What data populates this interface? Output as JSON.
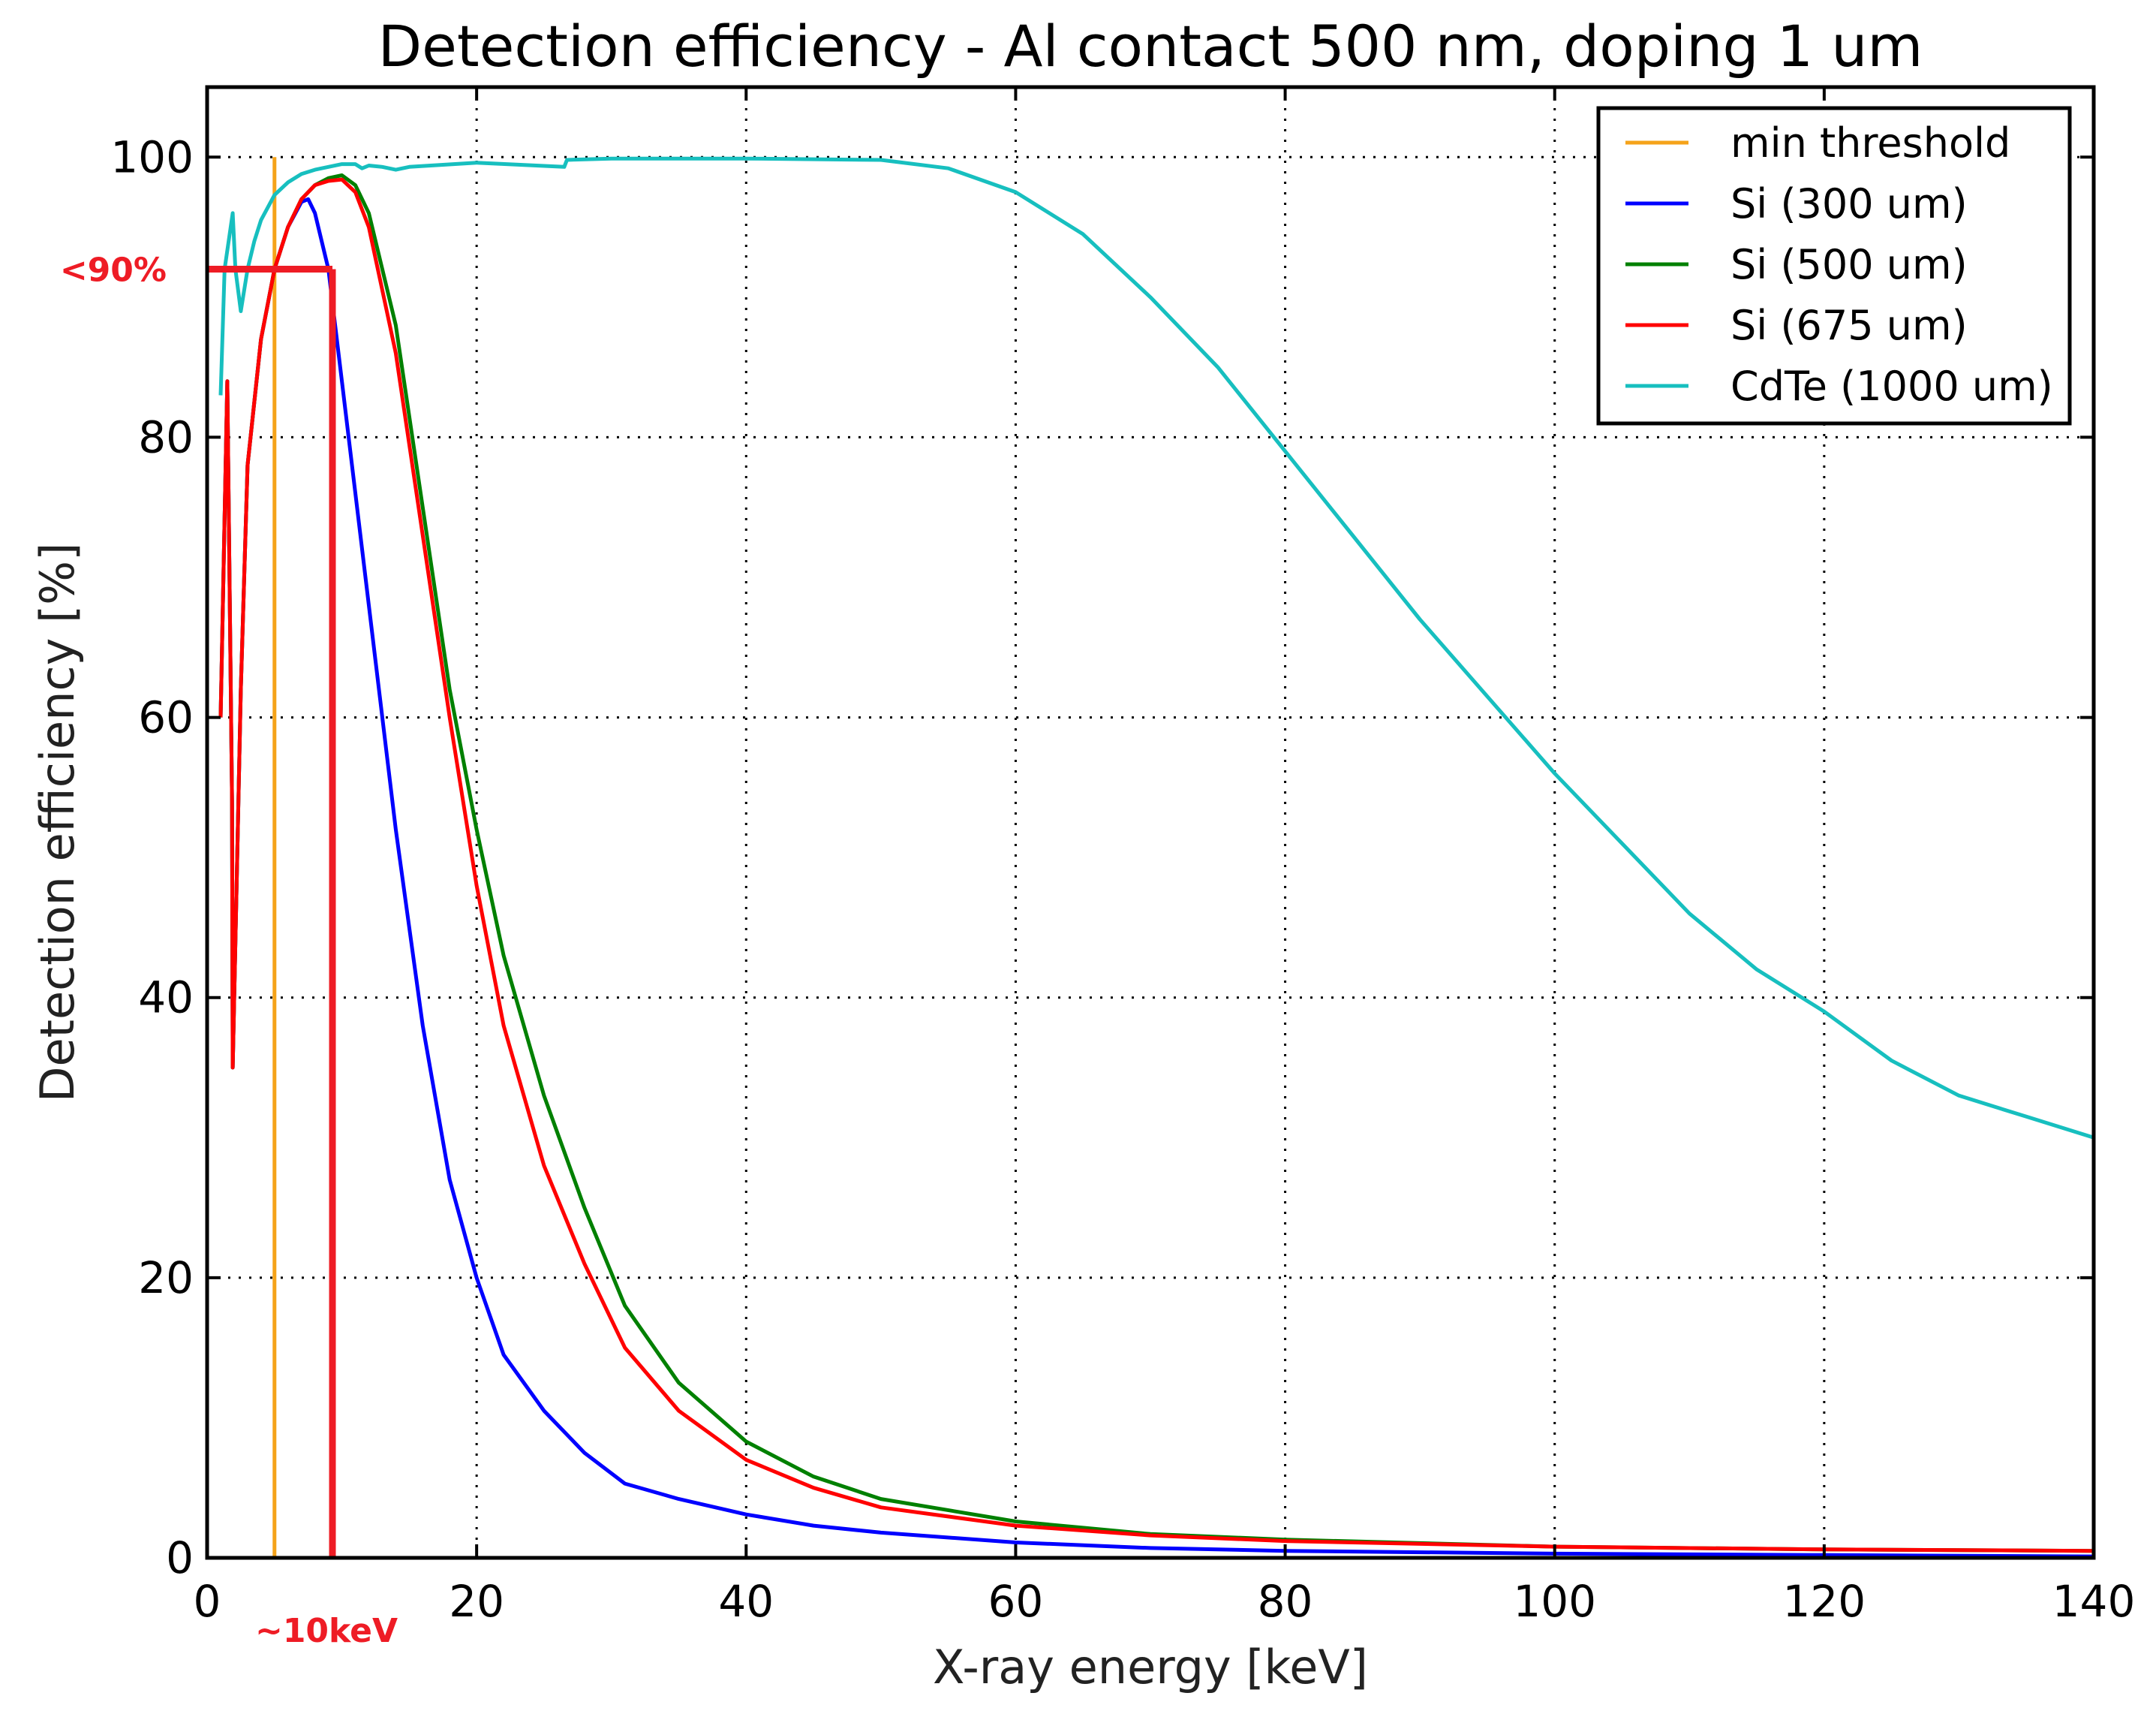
{
  "chart_data": {
    "type": "line",
    "title": "Detection efficiency - Al contact 500 nm, doping 1 um",
    "xlabel": "X-ray energy [keV]",
    "ylabel": "Detection efficiency [%]",
    "xlim": [
      0,
      140
    ],
    "ylim": [
      0,
      100
    ],
    "xticks": [
      0,
      20,
      40,
      60,
      80,
      100,
      120,
      140
    ],
    "yticks": [
      0,
      20,
      40,
      60,
      80,
      100
    ],
    "grid": true,
    "legend_position": "top-right",
    "series": [
      {
        "name": "min threshold",
        "color": "#f5a31a",
        "style": "vline",
        "x": [
          5,
          5
        ],
        "y": [
          0,
          100
        ]
      },
      {
        "name": "Si (300 um)",
        "color": "#0000ff",
        "x": [
          1,
          1.5,
          1.85,
          1.9,
          2.5,
          3,
          4,
          5,
          6,
          7,
          7.5,
          8,
          9,
          10,
          12,
          14,
          16,
          18,
          20,
          22,
          25,
          28,
          31,
          35,
          40,
          45,
          50,
          60,
          70,
          80,
          100,
          120,
          140
        ],
        "y": [
          60,
          84,
          54,
          35,
          62,
          78,
          87,
          92,
          95,
          96.8,
          97,
          96,
          92,
          84,
          68,
          52,
          38,
          27,
          20,
          14.5,
          10.5,
          7.5,
          5.3,
          4.2,
          3.1,
          2.3,
          1.8,
          1.1,
          0.7,
          0.5,
          0.3,
          0.2,
          0.1
        ]
      },
      {
        "name": "Si (500 um)",
        "color": "#008000",
        "x": [
          1,
          1.5,
          1.85,
          1.9,
          2.5,
          3,
          4,
          5,
          6,
          7,
          8,
          9,
          10,
          11,
          12,
          14,
          16,
          18,
          20,
          22,
          25,
          28,
          31,
          35,
          40,
          45,
          50,
          60,
          70,
          80,
          100,
          120,
          140
        ],
        "y": [
          60,
          84,
          54,
          35,
          62,
          78,
          87,
          92,
          95,
          97,
          98,
          98.5,
          98.7,
          98,
          96,
          88,
          75,
          62,
          52,
          43,
          33,
          25,
          18,
          12.5,
          8.3,
          5.8,
          4.2,
          2.6,
          1.7,
          1.3,
          0.8,
          0.6,
          0.5
        ]
      },
      {
        "name": "Si (675 um)",
        "color": "#ff0000",
        "x": [
          1,
          1.5,
          1.85,
          1.9,
          2.5,
          3,
          4,
          5,
          6,
          7,
          8,
          9,
          10,
          11,
          12,
          14,
          16,
          18,
          20,
          22,
          25,
          28,
          31,
          35,
          40,
          45,
          50,
          60,
          70,
          80,
          100,
          120,
          140
        ],
        "y": [
          60,
          84,
          54,
          35,
          62,
          78,
          87,
          92,
          95,
          97,
          98,
          98.3,
          98.4,
          97.5,
          95,
          86,
          73,
          60,
          48,
          38,
          28,
          21,
          15,
          10.5,
          7,
          5,
          3.6,
          2.3,
          1.6,
          1.2,
          0.8,
          0.6,
          0.5
        ]
      },
      {
        "name": "CdTe (1000 um)",
        "color": "#17bfbf",
        "x": [
          1,
          1.3,
          1.6,
          1.9,
          2.1,
          2.5,
          3,
          3.5,
          4,
          5,
          6,
          7,
          8,
          9,
          10,
          11,
          11.5,
          12,
          13,
          14,
          15,
          20,
          26.5,
          26.7,
          30,
          40,
          50,
          55,
          60,
          65,
          70,
          75,
          80,
          85,
          90,
          95,
          100,
          105,
          110,
          115,
          120,
          125,
          130,
          135,
          140
        ],
        "y": [
          83,
          92,
          94,
          96,
          92,
          89,
          92,
          94,
          95.5,
          97.3,
          98.2,
          98.8,
          99.1,
          99.3,
          99.5,
          99.5,
          99.2,
          99.4,
          99.3,
          99.1,
          99.3,
          99.6,
          99.3,
          99.8,
          99.9,
          99.9,
          99.8,
          99.2,
          97.5,
          94.5,
          90,
          85,
          79,
          73,
          67,
          61.5,
          56,
          51,
          46,
          42,
          39,
          35.5,
          33,
          31.5,
          30
        ]
      }
    ],
    "annotations": [
      {
        "text": "<90%",
        "color": "#ee1c25",
        "target_y": 92,
        "x_start": 0,
        "x_end": 9.3
      },
      {
        "text": "~10keV",
        "color": "#ee1c25",
        "target_x": 9.3,
        "y_start": 0,
        "y_end": 92
      }
    ]
  }
}
